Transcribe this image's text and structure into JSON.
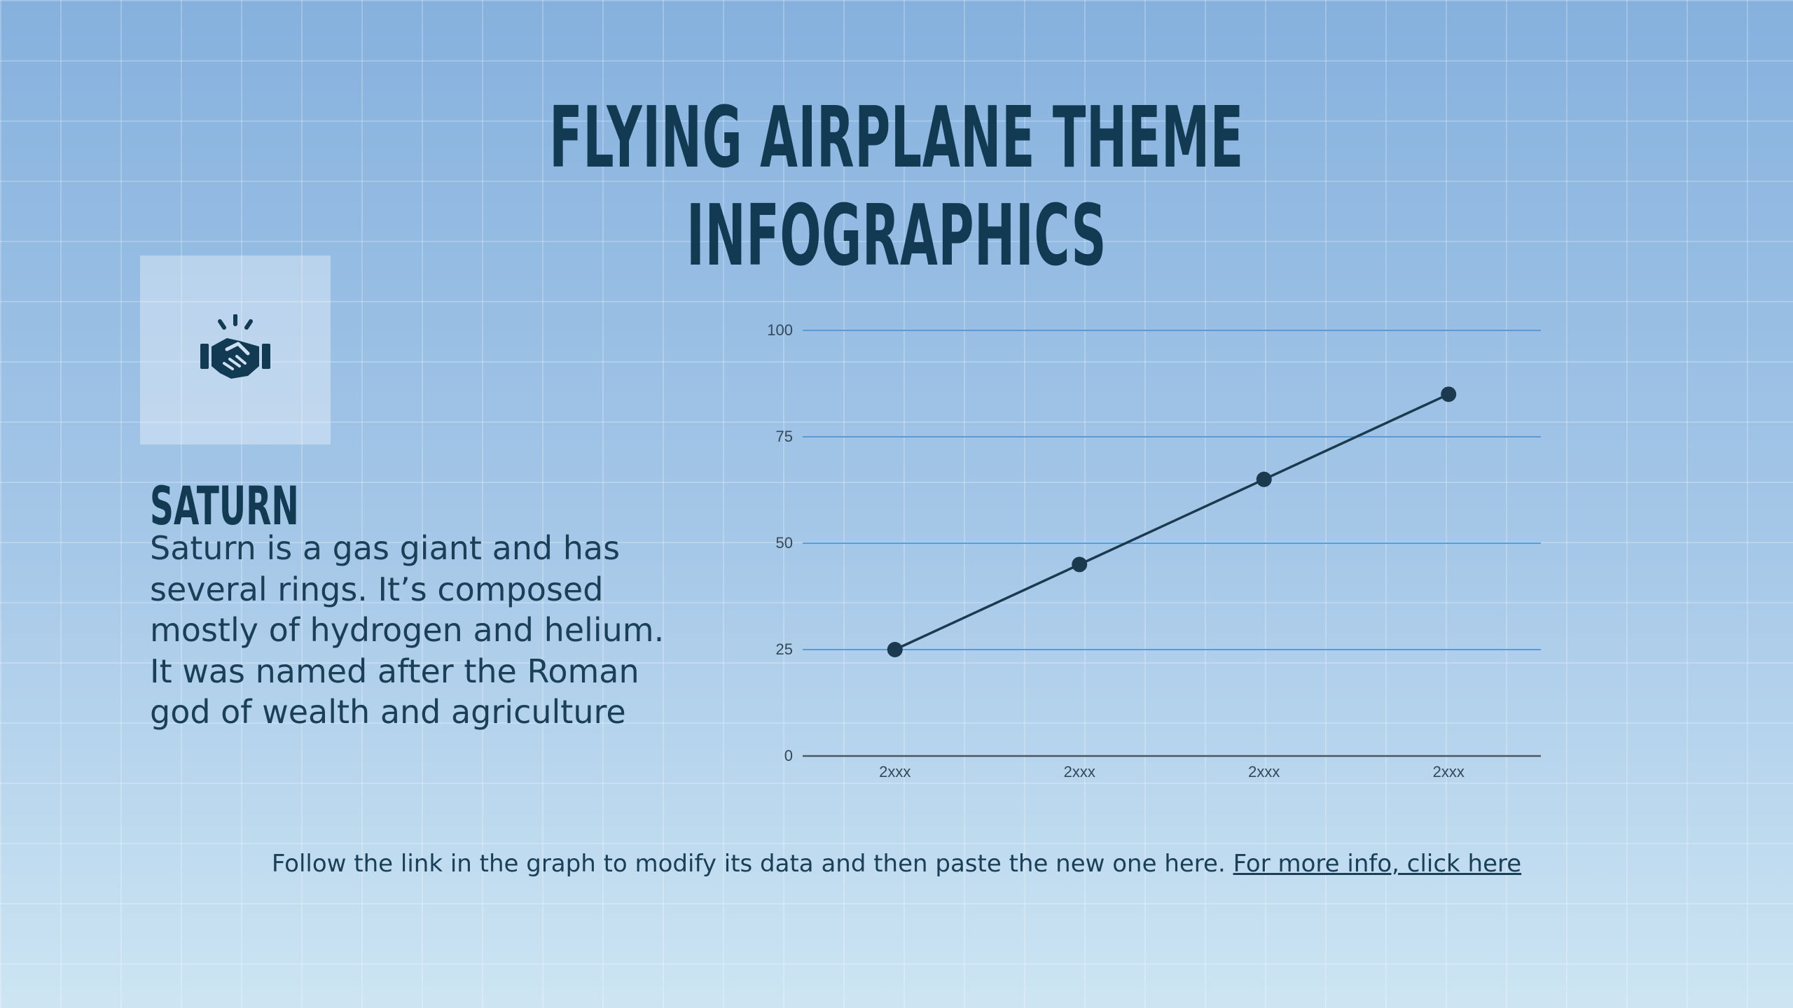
{
  "title": "FLYING AIRPLANE THEME INFOGRAPHICS",
  "card": {
    "icon": "handshake-icon",
    "heading": "SATURN",
    "body": "Saturn is a gas giant and has several rings. It’s composed mostly of hydrogen and helium. It was named after the Roman god of wealth and agriculture"
  },
  "footer": {
    "text": "Follow the link in the graph to modify its data and then paste the new one here. ",
    "link": "For more info, click here"
  },
  "colors": {
    "text": "#123a52",
    "gridline": "#5b9bd5",
    "line": "#1c3a4f"
  },
  "chart_data": {
    "type": "line",
    "categories": [
      "2xxx",
      "2xxx",
      "2xxx",
      "2xxx"
    ],
    "series": [
      {
        "values": [
          25,
          45,
          65,
          85
        ]
      }
    ],
    "yticks": [
      0,
      25,
      50,
      75,
      100
    ],
    "ylim": [
      0,
      100
    ],
    "grid": true,
    "legend": "none"
  }
}
